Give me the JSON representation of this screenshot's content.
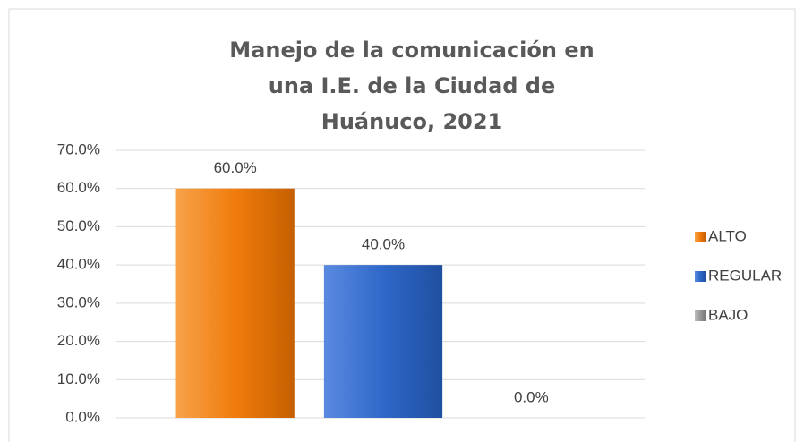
{
  "chart_data": {
    "type": "bar",
    "title": "Manejo de la comunicación en una I.E. de la Ciudad de Huánuco, 2021",
    "categories": [
      "ALTO",
      "REGULAR",
      "BAJO"
    ],
    "values": [
      60,
      40,
      0
    ],
    "value_labels": [
      "60.0%",
      "40.0%",
      "0.0%"
    ],
    "colors": [
      "#f07c0c",
      "#2f68c9",
      "#9a9a9a"
    ],
    "ylim": [
      0,
      70
    ],
    "yticks": [
      {
        "value": 0,
        "label": "0.0%"
      },
      {
        "value": 10,
        "label": "10.0%"
      },
      {
        "value": 20,
        "label": "20.0%"
      },
      {
        "value": 30,
        "label": "30.0%"
      },
      {
        "value": 40,
        "label": "40.0%"
      },
      {
        "value": 50,
        "label": "50.0%"
      },
      {
        "value": 60,
        "label": "60.0%"
      },
      {
        "value": 70,
        "label": "70.0%"
      }
    ],
    "grid": true,
    "legend": "right"
  }
}
